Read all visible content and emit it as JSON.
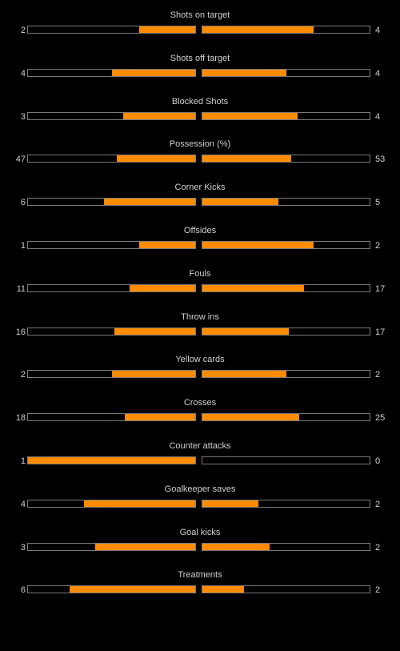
{
  "colors": {
    "background": "#000000",
    "bar_fill": "#ff8c00",
    "bar_border": "#7a7a7a",
    "text": "#d0d0d0"
  },
  "stats": [
    {
      "label": "Shots on target",
      "home": "2",
      "away": "4",
      "home_share": 0.333,
      "away_share": 0.667
    },
    {
      "label": "Shots off target",
      "home": "4",
      "away": "4",
      "home_share": 0.5,
      "away_share": 0.5
    },
    {
      "label": "Blocked Shots",
      "home": "3",
      "away": "4",
      "home_share": 0.429,
      "away_share": 0.571
    },
    {
      "label": "Possession (%)",
      "home": "47",
      "away": "53",
      "home_share": 0.47,
      "away_share": 0.53
    },
    {
      "label": "Corner Kicks",
      "home": "6",
      "away": "5",
      "home_share": 0.545,
      "away_share": 0.455
    },
    {
      "label": "Offsides",
      "home": "1",
      "away": "2",
      "home_share": 0.333,
      "away_share": 0.667
    },
    {
      "label": "Fouls",
      "home": "11",
      "away": "17",
      "home_share": 0.393,
      "away_share": 0.607
    },
    {
      "label": "Throw ins",
      "home": "16",
      "away": "17",
      "home_share": 0.485,
      "away_share": 0.515
    },
    {
      "label": "Yellow cards",
      "home": "2",
      "away": "2",
      "home_share": 0.5,
      "away_share": 0.5
    },
    {
      "label": "Crosses",
      "home": "18",
      "away": "25",
      "home_share": 0.419,
      "away_share": 0.581
    },
    {
      "label": "Counter attacks",
      "home": "1",
      "away": "0",
      "home_share": 1.0,
      "away_share": 0.0
    },
    {
      "label": "Goalkeeper saves",
      "home": "4",
      "away": "2",
      "home_share": 0.667,
      "away_share": 0.333
    },
    {
      "label": "Goal kicks",
      "home": "3",
      "away": "2",
      "home_share": 0.6,
      "away_share": 0.4
    },
    {
      "label": "Treatments",
      "home": "6",
      "away": "2",
      "home_share": 0.75,
      "away_share": 0.25
    }
  ]
}
